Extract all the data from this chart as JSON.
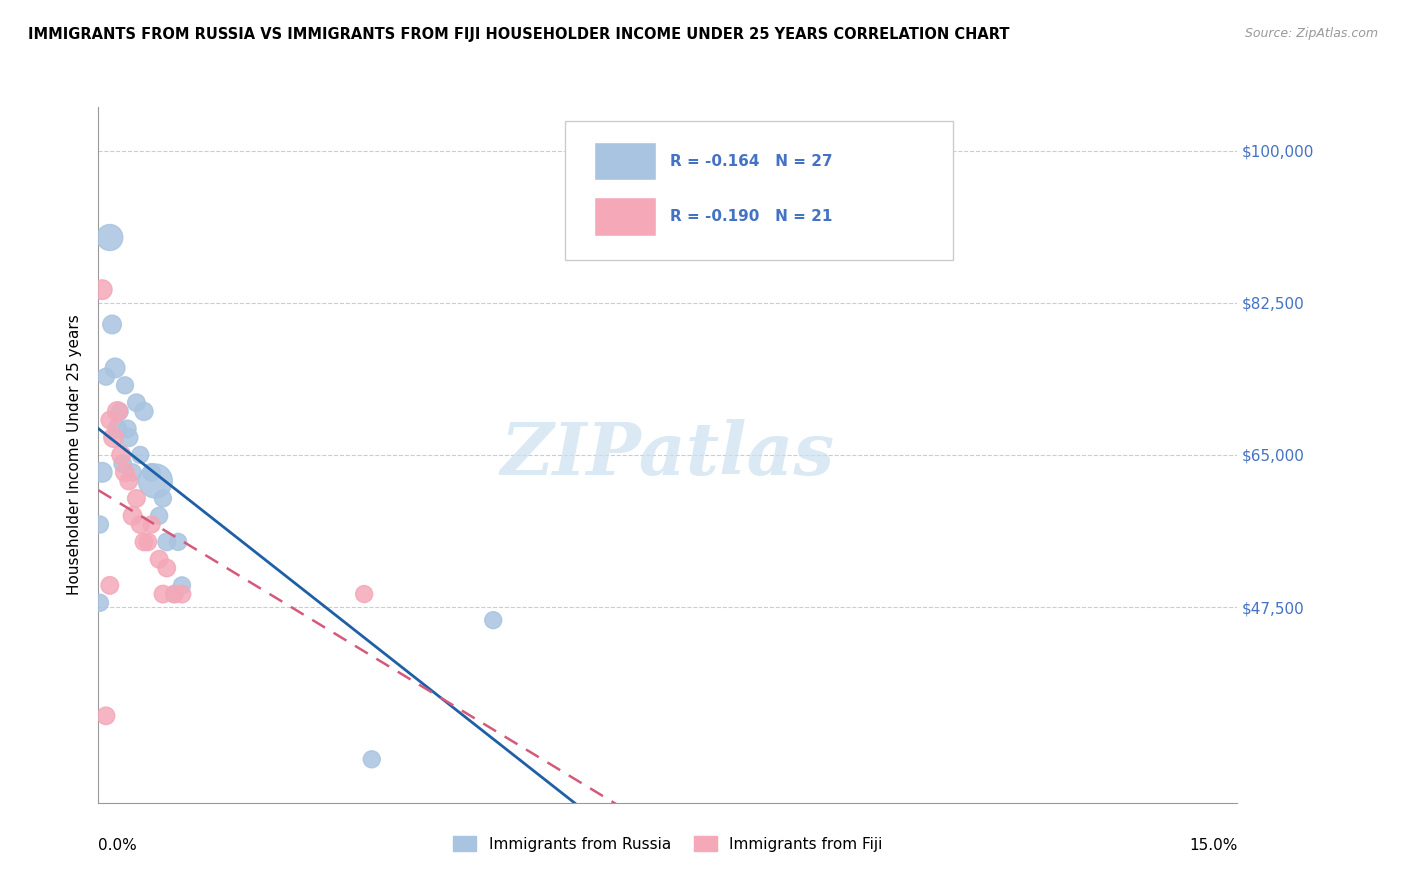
{
  "title": "IMMIGRANTS FROM RUSSIA VS IMMIGRANTS FROM FIJI HOUSEHOLDER INCOME UNDER 25 YEARS CORRELATION CHART",
  "source": "Source: ZipAtlas.com",
  "ylabel": "Householder Income Under 25 years",
  "xlim": [
    0.0,
    15.0
  ],
  "ylim": [
    25000,
    105000
  ],
  "yticks": [
    47500,
    65000,
    82500,
    100000
  ],
  "ytick_labels": [
    "$47,500",
    "$65,000",
    "$82,500",
    "$100,000"
  ],
  "russia_R": -0.164,
  "russia_N": 27,
  "fiji_R": -0.19,
  "fiji_N": 21,
  "russia_color": "#a8c4e0",
  "russia_line_color": "#1f5fa6",
  "fiji_color": "#f4a8b8",
  "fiji_line_color": "#d45a7a",
  "watermark": "ZIPatlas",
  "russia_points": [
    [
      0.05,
      63000
    ],
    [
      0.1,
      74000
    ],
    [
      0.15,
      90000
    ],
    [
      0.18,
      80000
    ],
    [
      0.22,
      75000
    ],
    [
      0.25,
      68000
    ],
    [
      0.28,
      70000
    ],
    [
      0.32,
      64000
    ],
    [
      0.35,
      73000
    ],
    [
      0.38,
      68000
    ],
    [
      0.4,
      67000
    ],
    [
      0.45,
      63000
    ],
    [
      0.5,
      71000
    ],
    [
      0.55,
      65000
    ],
    [
      0.6,
      70000
    ],
    [
      0.7,
      63000
    ],
    [
      0.75,
      62000
    ],
    [
      0.8,
      58000
    ],
    [
      0.85,
      60000
    ],
    [
      0.9,
      55000
    ],
    [
      1.0,
      49000
    ],
    [
      1.05,
      55000
    ],
    [
      1.1,
      50000
    ],
    [
      0.02,
      57000
    ],
    [
      0.02,
      48000
    ],
    [
      5.2,
      46000
    ],
    [
      3.6,
      30000
    ]
  ],
  "fiji_points": [
    [
      0.05,
      84000
    ],
    [
      0.15,
      69000
    ],
    [
      0.2,
      67000
    ],
    [
      0.25,
      70000
    ],
    [
      0.3,
      65000
    ],
    [
      0.35,
      63000
    ],
    [
      0.4,
      62000
    ],
    [
      0.45,
      58000
    ],
    [
      0.5,
      60000
    ],
    [
      0.55,
      57000
    ],
    [
      0.6,
      55000
    ],
    [
      0.65,
      55000
    ],
    [
      0.7,
      57000
    ],
    [
      0.8,
      53000
    ],
    [
      0.85,
      49000
    ],
    [
      0.9,
      52000
    ],
    [
      1.0,
      49000
    ],
    [
      1.1,
      49000
    ],
    [
      3.5,
      49000
    ],
    [
      0.15,
      50000
    ],
    [
      0.1,
      35000
    ]
  ],
  "russia_sizes": [
    200,
    150,
    350,
    180,
    200,
    180,
    150,
    160,
    150,
    160,
    170,
    150,
    160,
    150,
    170,
    160,
    600,
    150,
    150,
    160,
    150,
    150,
    150,
    150,
    150,
    150,
    150
  ],
  "fiji_sizes": [
    200,
    160,
    200,
    200,
    180,
    180,
    160,
    180,
    160,
    160,
    160,
    160,
    150,
    160,
    160,
    160,
    160,
    160,
    150,
    160,
    160
  ]
}
